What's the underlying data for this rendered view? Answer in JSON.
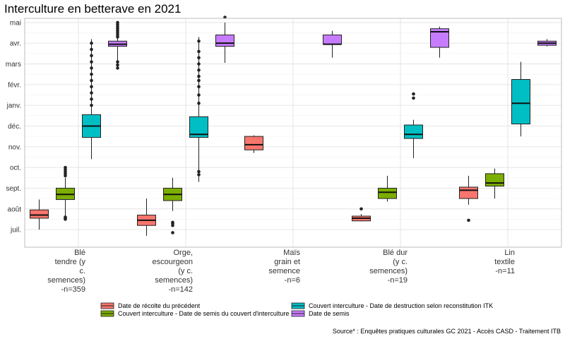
{
  "chart_data": {
    "type": "boxplot",
    "title": "Interculture en betterave en 2021",
    "source": "Source* : Enquêtes pratiques culturales GC 2021 - Accès CASD - Traitement ITB",
    "y_ticks": [
      "juil.",
      "août",
      "sept.",
      "oct.",
      "nov.",
      "déc.",
      "janv.",
      "févr.",
      "mars",
      "avr.",
      "mai"
    ],
    "y_unit": "month index (juil.=0 … mai=10)",
    "ylim": [
      -0.85,
      10.2
    ],
    "grid": true,
    "legend_position": "bottom",
    "categories": [
      {
        "label_lines": [
          "Blé",
          "tendre (y",
          "c.",
          "semences)",
          "-n=359"
        ]
      },
      {
        "label_lines": [
          "Orge,",
          "escourgeon",
          "(y c.",
          "semences)",
          "-n=142"
        ]
      },
      {
        "label_lines": [
          "Maïs",
          "grain et",
          "semence",
          "-n=6"
        ]
      },
      {
        "label_lines": [
          "Blé dur",
          "(y c.",
          "semences)",
          "-n=19"
        ]
      },
      {
        "label_lines": [
          "Lin",
          "textile",
          "-n=11"
        ]
      }
    ],
    "series": [
      {
        "name": "Date de récolte du précédent",
        "color": "#F8766D",
        "boxes": [
          {
            "cat": 0,
            "min": 0.0,
            "q1": 0.55,
            "med": 0.7,
            "q3": 0.95,
            "max": 1.45,
            "outliers": []
          },
          {
            "cat": 1,
            "min": -0.3,
            "q1": 0.2,
            "med": 0.45,
            "q3": 0.7,
            "max": 1.5,
            "outliers": []
          },
          {
            "cat": 2,
            "min": 3.7,
            "q1": 3.85,
            "med": 4.1,
            "q3": 4.5,
            "max": 4.55,
            "outliers": []
          },
          {
            "cat": 3,
            "min": 0.4,
            "q1": 0.42,
            "med": 0.55,
            "q3": 0.65,
            "max": 0.75,
            "outliers": [
              1.0
            ]
          },
          {
            "cat": 4,
            "min": 1.2,
            "q1": 1.5,
            "med": 1.9,
            "q3": 2.05,
            "max": 2.6,
            "outliers": [
              0.45
            ]
          }
        ]
      },
      {
        "name": "Couvert interculture - Date de semis du couvert d'interculture",
        "color": "#7CAE00",
        "boxes": [
          {
            "cat": 0,
            "min": 0.5,
            "q1": 1.45,
            "med": 1.7,
            "q3": 2.0,
            "max": 2.5,
            "outliers": [
              0.5,
              0.55,
              0.6,
              2.6,
              2.7,
              2.8,
              2.9,
              3.0
            ]
          },
          {
            "cat": 1,
            "min": 0.9,
            "q1": 1.4,
            "med": 1.7,
            "q3": 2.0,
            "max": 2.5,
            "outliers": [
              -0.15,
              0.2,
              0.3,
              0.35
            ]
          },
          {
            "cat": 3,
            "min": 1.35,
            "q1": 1.5,
            "med": 1.8,
            "q3": 2.0,
            "max": 2.6,
            "outliers": []
          },
          {
            "cat": 4,
            "min": 1.5,
            "q1": 2.1,
            "med": 2.25,
            "q3": 2.7,
            "max": 2.95,
            "outliers": []
          }
        ]
      },
      {
        "name": "Couvert interculture - Date de destruction selon reconstitution ITK",
        "color": "#00BFC4",
        "boxes": [
          {
            "cat": 0,
            "min": 3.4,
            "q1": 4.45,
            "med": 5.0,
            "q3": 5.55,
            "max": 9.2,
            "outliers": [
              6.0,
              6.3,
              6.6,
              6.9,
              7.2,
              7.5,
              7.8,
              8.1,
              8.4,
              8.7,
              9.0
            ]
          },
          {
            "cat": 1,
            "min": 2.3,
            "q1": 4.45,
            "med": 4.6,
            "q3": 5.45,
            "max": 9.3,
            "outliers": [
              2.65,
              2.8,
              6.1,
              6.5,
              6.9,
              7.2,
              7.4,
              7.7,
              8.0,
              8.3,
              8.6,
              9.1
            ]
          },
          {
            "cat": 3,
            "min": 3.45,
            "q1": 4.4,
            "med": 4.6,
            "q3": 5.05,
            "max": 5.3,
            "outliers": [
              6.35,
              6.55
            ]
          },
          {
            "cat": 4,
            "min": 4.5,
            "q1": 5.1,
            "med": 6.1,
            "q3": 7.25,
            "max": 8.1,
            "outliers": []
          }
        ]
      },
      {
        "name": "Date de semis",
        "color": "#C77CFF",
        "boxes": [
          {
            "cat": 0,
            "min": 7.8,
            "q1": 8.85,
            "med": 8.95,
            "q3": 9.1,
            "max": 9.7,
            "outliers": [
              7.8,
              7.95,
              8.1,
              9.3,
              9.4,
              9.5,
              9.6,
              9.7,
              9.8,
              9.9,
              10.0
            ]
          },
          {
            "cat": 1,
            "min": 8.05,
            "q1": 8.85,
            "med": 9.0,
            "q3": 9.4,
            "max": 10.0,
            "outliers": [
              10.25
            ]
          },
          {
            "cat": 2,
            "min": 8.3,
            "q1": 8.95,
            "med": 8.95,
            "q3": 9.4,
            "max": 9.6,
            "outliers": []
          },
          {
            "cat": 3,
            "min": 8.3,
            "q1": 8.8,
            "med": 9.55,
            "q3": 9.7,
            "max": 9.8,
            "outliers": []
          },
          {
            "cat": 4,
            "min": 8.85,
            "q1": 8.9,
            "med": 9.0,
            "q3": 9.1,
            "max": 9.2,
            "outliers": []
          }
        ]
      }
    ]
  }
}
